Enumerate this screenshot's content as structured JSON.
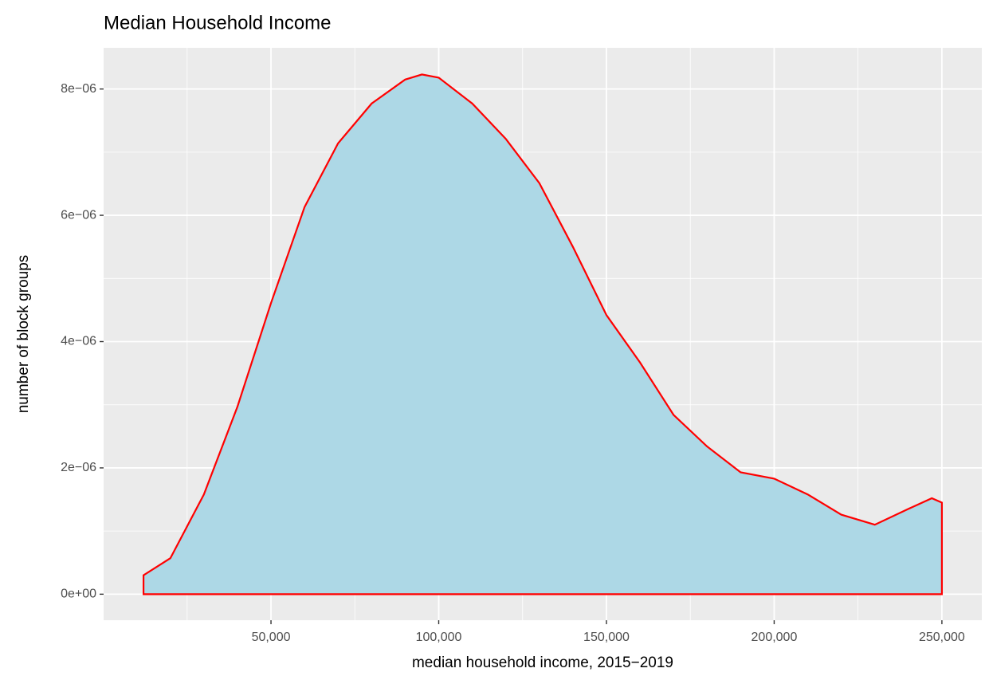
{
  "chart_data": {
    "type": "density",
    "title": "Median Household Income",
    "x_label": "median household income, 2015−2019",
    "y_label": "number of block groups",
    "x": [
      12000,
      20000,
      30000,
      40000,
      50000,
      60000,
      70000,
      80000,
      90000,
      95000,
      100000,
      110000,
      120000,
      130000,
      140000,
      150000,
      160000,
      170000,
      180000,
      190000,
      200000,
      210000,
      220000,
      230000,
      240000,
      247000,
      250000
    ],
    "values": [
      3e-07,
      5.7e-07,
      1.58e-06,
      2.97e-06,
      4.61e-06,
      6.13e-06,
      7.14e-06,
      7.77e-06,
      8.15e-06,
      8.23e-06,
      8.18e-06,
      7.77e-06,
      7.21e-06,
      6.51e-06,
      5.5e-06,
      4.42e-06,
      3.67e-06,
      2.84e-06,
      2.34e-06,
      1.93e-06,
      1.83e-06,
      1.58e-06,
      1.26e-06,
      1.1e-06,
      1.35e-06,
      1.52e-06,
      1.45e-06
    ],
    "fill": "#add8e6",
    "color": "#ff0000",
    "xlim": [
      100,
      261900
    ],
    "ylim": [
      -4.12e-07,
      8.652e-06
    ],
    "xticks": [
      {
        "value": 50000,
        "label": "50,000"
      },
      {
        "value": 100000,
        "label": "100,000"
      },
      {
        "value": 150000,
        "label": "150,000"
      },
      {
        "value": 200000,
        "label": "200,000"
      },
      {
        "value": 250000,
        "label": "250,000"
      }
    ],
    "yticks": [
      {
        "value": 0,
        "label": "0e+00"
      },
      {
        "value": 2e-06,
        "label": "2e−06"
      },
      {
        "value": 4e-06,
        "label": "4e−06"
      },
      {
        "value": 6e-06,
        "label": "6e−06"
      },
      {
        "value": 8e-06,
        "label": "8e−06"
      }
    ],
    "x_minor_ticks": [
      25000,
      75000,
      125000,
      175000,
      225000
    ],
    "y_minor_ticks": [
      1e-06,
      3e-06,
      5e-06,
      7e-06
    ],
    "grid": true
  }
}
